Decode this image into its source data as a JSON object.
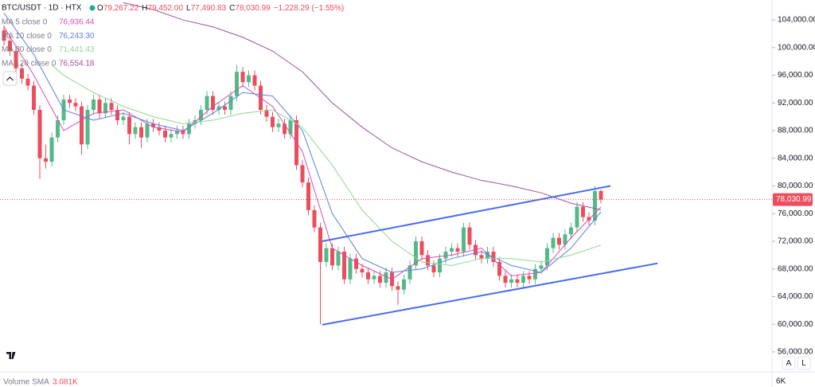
{
  "chart_data": {
    "type": "candlestick",
    "title": "BTC/USDT · 1D · HTX",
    "ohlc_legend": [
      {
        "key": "O",
        "value": "79,267.22"
      },
      {
        "key": "H",
        "value": "79,452.00"
      },
      {
        "key": "L",
        "value": "77,490.83"
      },
      {
        "key": "C",
        "value": "78,030.99"
      },
      {
        "key": "",
        "value": "−1,228.29 (−1.55%)"
      }
    ],
    "up_color": "#53b987",
    "down_color": "#eb4d5c",
    "open": [
      102500,
      101000,
      99500,
      97000,
      95500,
      94500,
      91000,
      84000,
      83500,
      87000,
      89500,
      92500,
      92000,
      91500,
      86000,
      91000,
      92500,
      90500,
      92000,
      91000,
      89500,
      90000,
      87500,
      88500,
      87000,
      89000,
      88500,
      88000,
      87000,
      87500,
      88000,
      87500,
      89000,
      89500,
      91000,
      93000,
      91000,
      91500,
      91000,
      93000,
      96500,
      95000,
      96000,
      94500,
      91000,
      90000,
      88500,
      89000,
      87500,
      89500,
      83000,
      80500,
      76500,
      74000,
      69000,
      71000,
      68500,
      70500,
      66500,
      69500,
      68000,
      67500,
      66500,
      67000,
      66000,
      67500,
      65500,
      65000,
      66500,
      68500,
      72000,
      70000,
      68500,
      67500,
      69500,
      70500,
      71000,
      70500,
      74000,
      71500,
      70000,
      69500,
      70500,
      69000,
      67000,
      66000,
      66500,
      66000,
      67000,
      66500,
      68000,
      68500,
      71000,
      72500,
      71500,
      73000,
      74000,
      77000,
      75500,
      75000,
      79267.22
    ],
    "high": [
      103200,
      101700,
      100200,
      97700,
      96200,
      95200,
      91700,
      86000,
      87700,
      90200,
      93200,
      93200,
      92700,
      92200,
      91700,
      93200,
      93200,
      92700,
      92700,
      91700,
      90700,
      90700,
      89200,
      89200,
      89700,
      89700,
      89200,
      88700,
      88200,
      88700,
      88700,
      89700,
      90200,
      91700,
      93700,
      93700,
      92200,
      92200,
      93700,
      97500,
      97200,
      96700,
      96700,
      95200,
      91700,
      90700,
      89700,
      89700,
      90200,
      90200,
      83700,
      81200,
      77200,
      74700,
      71700,
      71700,
      71200,
      71200,
      70200,
      70200,
      68700,
      68200,
      67700,
      67700,
      68200,
      68200,
      66200,
      67200,
      69200,
      72700,
      72700,
      70700,
      69200,
      70200,
      71200,
      71700,
      71700,
      74700,
      74700,
      72200,
      70700,
      71200,
      71200,
      69700,
      67700,
      67200,
      67200,
      67700,
      67700,
      68700,
      69200,
      71700,
      73200,
      73200,
      73700,
      74700,
      77700,
      77700,
      76200,
      79960,
      79452
    ],
    "low": [
      100300,
      98800,
      96300,
      94800,
      93800,
      90300,
      81000,
      82500,
      82800,
      86300,
      88800,
      91300,
      90800,
      84500,
      85300,
      90300,
      89800,
      89800,
      90300,
      88800,
      88800,
      86000,
      86800,
      85500,
      86300,
      87800,
      87300,
      86300,
      86300,
      86800,
      86800,
      86800,
      88300,
      88800,
      90300,
      90300,
      90300,
      90300,
      90300,
      92300,
      94300,
      94300,
      93800,
      90300,
      89300,
      87800,
      87800,
      86800,
      86800,
      82300,
      79800,
      75800,
      73300,
      60000,
      68300,
      67800,
      67800,
      65800,
      65800,
      67300,
      66800,
      65800,
      65800,
      65300,
      65300,
      64800,
      62800,
      64300,
      65800,
      67800,
      69300,
      67800,
      66800,
      66800,
      68800,
      69800,
      69800,
      69800,
      70800,
      69300,
      68800,
      68800,
      68300,
      66300,
      65300,
      65300,
      65300,
      65300,
      65800,
      65800,
      67300,
      67800,
      70300,
      70800,
      70800,
      72300,
      73300,
      74800,
      74300,
      74300,
      77490.83
    ],
    "close": [
      101000,
      99500,
      97000,
      95500,
      94500,
      91000,
      84000,
      83500,
      87000,
      89500,
      92500,
      92000,
      91500,
      86000,
      91000,
      92500,
      90500,
      92000,
      91000,
      89500,
      90000,
      87500,
      88500,
      87000,
      89000,
      88500,
      88000,
      87000,
      87500,
      88000,
      87500,
      89000,
      89500,
      91000,
      93000,
      91000,
      91500,
      91000,
      93000,
      96500,
      95000,
      96000,
      94500,
      91000,
      90000,
      88500,
      89000,
      87500,
      89500,
      83000,
      80500,
      76500,
      74000,
      69000,
      71000,
      68500,
      70500,
      66500,
      69500,
      68000,
      67500,
      66500,
      67000,
      66000,
      67500,
      65500,
      65000,
      66500,
      68500,
      72000,
      70000,
      68500,
      67500,
      69500,
      70500,
      71000,
      70500,
      74000,
      71500,
      70000,
      69500,
      70500,
      69000,
      67000,
      66000,
      66500,
      66000,
      67000,
      66500,
      68000,
      68500,
      71000,
      72500,
      71500,
      73000,
      74000,
      77000,
      75500,
      75000,
      79259,
      78030.99
    ],
    "series": [
      {
        "name": "MA 5 close 0",
        "value_label": "76,936.44",
        "color": "#d64db5",
        "x": [
          0,
          5,
          10,
          15,
          20,
          25,
          30,
          35,
          40,
          45,
          50,
          55,
          60,
          65,
          70,
          75,
          80,
          85,
          90,
          95,
          100
        ],
        "values": [
          103000,
          96000,
          88000,
          90500,
          91000,
          88500,
          87800,
          91500,
          94500,
          91500,
          85000,
          71000,
          68500,
          66500,
          69500,
          70000,
          71000,
          67000,
          67500,
          72500,
          76936.44
        ]
      },
      {
        "name": "MA 10 close 0",
        "value_label": "76,243.30",
        "color": "#5b7fe0",
        "x": [
          0,
          5,
          10,
          15,
          20,
          25,
          30,
          35,
          40,
          45,
          50,
          55,
          60,
          65,
          70,
          75,
          80,
          85,
          90,
          95,
          100
        ],
        "values": [
          105000,
          99000,
          91000,
          89500,
          90500,
          89000,
          88000,
          90500,
          93500,
          93000,
          88000,
          76000,
          69500,
          67500,
          68000,
          69500,
          70500,
          68500,
          67500,
          71000,
          76243.3
        ]
      },
      {
        "name": "MA 30 close 0",
        "value_label": "71,441.43",
        "color": "#8fd88f",
        "x": [
          8,
          10,
          15,
          20,
          25,
          30,
          35,
          40,
          45,
          50,
          55,
          60,
          65,
          70,
          75,
          80,
          85,
          90,
          95,
          100
        ],
        "values": [
          97500,
          96000,
          93500,
          91500,
          90000,
          89000,
          89500,
          90500,
          91000,
          88500,
          83000,
          76500,
          72000,
          69000,
          68500,
          69500,
          69500,
          69000,
          70000,
          71441.43
        ]
      },
      {
        "name": "MA 120 close 0",
        "value_label": "76,554.18",
        "color": "#a0509a",
        "x": [
          20,
          25,
          30,
          35,
          40,
          45,
          50,
          55,
          60,
          65,
          70,
          75,
          80,
          85,
          90,
          95,
          100
        ],
        "values": [
          106500,
          105500,
          104000,
          103000,
          101500,
          99500,
          96500,
          92000,
          88500,
          85500,
          83500,
          82000,
          80800,
          80000,
          79000,
          77500,
          76554.18
        ]
      }
    ],
    "trendlines": {
      "color": "#4a6cf0",
      "lines": [
        {
          "x": [
            53.3,
            101.6
          ],
          "y": [
            72000,
            80000
          ]
        },
        {
          "x": [
            53.3,
            109.5
          ],
          "y": [
            59925,
            68810
          ]
        }
      ]
    },
    "last_price": {
      "value": 78030.99,
      "label": "78,030.99"
    },
    "xlim": [
      -0.67,
      128.67
    ],
    "ylim": [
      53230,
      106885
    ],
    "yticks": [
      {
        "value": 56000,
        "label": "56,000.00"
      },
      {
        "value": 60000,
        "label": "60,000.00"
      },
      {
        "value": 64000,
        "label": "64,000.00"
      },
      {
        "value": 68000,
        "label": "68,000.00"
      },
      {
        "value": 72000,
        "label": "72,000.00"
      },
      {
        "value": 76000,
        "label": "76,000.00"
      },
      {
        "value": 80000,
        "label": "80,000.00"
      },
      {
        "value": 84000,
        "label": "84,000.00"
      },
      {
        "value": 88000,
        "label": "88,000.00"
      },
      {
        "value": 92000,
        "label": "92,000.00"
      },
      {
        "value": 96000,
        "label": "96,000.00"
      },
      {
        "value": 100000,
        "label": "100,000.00"
      },
      {
        "value": 104000,
        "label": "104,000.00"
      }
    ],
    "volume_label": "Volume SMA",
    "volume_value": "3.081K",
    "volume_axis_label": "6K",
    "buttons": [
      "A",
      "L"
    ]
  }
}
